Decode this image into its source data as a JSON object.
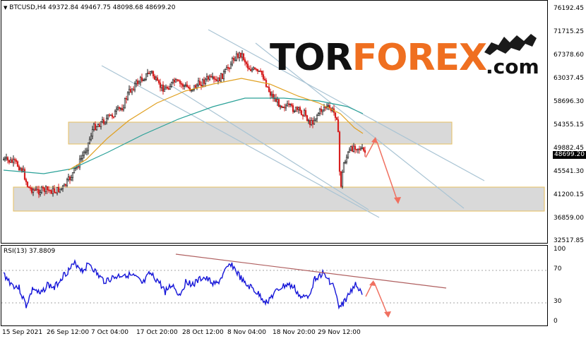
{
  "header": {
    "symbol": "BTCUSD,H4",
    "ohlc": "49372.84 49467.75 48098.68 48699.20"
  },
  "price_axis": {
    "ticks": [
      "76192.45",
      "71715.25",
      "67378.60",
      "63037.45",
      "58696.30",
      "54355.15",
      "49882.45",
      "45541.30",
      "41200.15",
      "36859.00",
      "32517.85"
    ],
    "current_price": "48699.20"
  },
  "rsi": {
    "label": "RSI(13) 37.8809",
    "ticks": [
      "100",
      "70",
      "30",
      "0"
    ]
  },
  "time_axis": {
    "labels": [
      "15 Sep 2021",
      "26 Sep 12:00",
      "7 Oct 04:00",
      "17 Oct 20:00",
      "28 Oct 12:00",
      "8 Nov 04:00",
      "18 Nov 20:00",
      "29 Nov 12:00"
    ]
  },
  "watermark": {
    "part1": "TOR",
    "part2": "FOREX",
    "suffix": ".com"
  },
  "colors": {
    "bull": "#1a1a1a",
    "bear": "#d62020",
    "rsi_line": "#1515d8",
    "ma_slow": "#2aa198",
    "ma_fast": "#e0a020",
    "zone_fill": "#d9d9d9",
    "zone_border": "#e8c060",
    "channel": "#a9c4d4",
    "arrow": "#f07060",
    "rsi_trend": "#b06060"
  }
}
